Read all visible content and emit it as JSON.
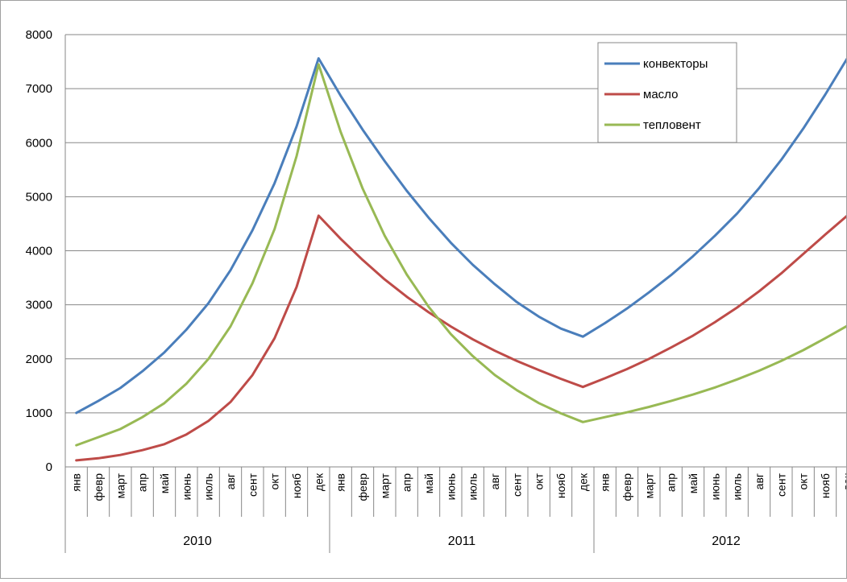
{
  "chart_data": {
    "type": "line",
    "title": "",
    "xlabel": "",
    "ylabel": "",
    "ylim": [
      0,
      8000
    ],
    "yticks": [
      0,
      1000,
      2000,
      3000,
      4000,
      5000,
      6000,
      7000,
      8000
    ],
    "grid": "horizontal",
    "legend_position": "top-right",
    "x": [
      "янв",
      "февр",
      "март",
      "апр",
      "май",
      "июнь",
      "июль",
      "авг",
      "сент",
      "окт",
      "нояб",
      "дек",
      "янв",
      "февр",
      "март",
      "апр",
      "май",
      "июнь",
      "июль",
      "авг",
      "сент",
      "окт",
      "нояб",
      "дек",
      "янв",
      "февр",
      "март",
      "апр",
      "май",
      "июнь",
      "июль",
      "авг",
      "сент",
      "окт",
      "нояб",
      "дек"
    ],
    "groups": [
      {
        "label": "2010",
        "count": 12
      },
      {
        "label": "2011",
        "count": 12
      },
      {
        "label": "2012",
        "count": 12
      }
    ],
    "series": [
      {
        "name": "конвекторы",
        "color": "#4a7ebb",
        "values": [
          1000,
          1220,
          1460,
          1770,
          2120,
          2540,
          3030,
          3640,
          4380,
          5250,
          6300,
          7560,
          6870,
          6240,
          5660,
          5110,
          4610,
          4150,
          3740,
          3380,
          3050,
          2780,
          2560,
          2410,
          2660,
          2930,
          3230,
          3550,
          3900,
          4280,
          4690,
          5160,
          5680,
          6260,
          6890,
          7560
        ]
      },
      {
        "name": "масло",
        "color": "#be4b48",
        "values": [
          120,
          160,
          220,
          310,
          420,
          600,
          850,
          1200,
          1700,
          2380,
          3330,
          4650,
          4220,
          3830,
          3470,
          3150,
          2860,
          2600,
          2360,
          2150,
          1960,
          1790,
          1630,
          1480,
          1640,
          1810,
          2000,
          2210,
          2430,
          2680,
          2950,
          3250,
          3580,
          3940,
          4300,
          4650
        ]
      },
      {
        "name": "тепловент",
        "color": "#98b954",
        "values": [
          400,
          550,
          700,
          920,
          1180,
          1540,
          2000,
          2600,
          3400,
          4400,
          5750,
          7450,
          6200,
          5150,
          4280,
          3560,
          2960,
          2460,
          2050,
          1700,
          1420,
          1180,
          990,
          830,
          920,
          1010,
          1110,
          1220,
          1340,
          1470,
          1620,
          1780,
          1960,
          2160,
          2380,
          2610
        ]
      }
    ]
  }
}
